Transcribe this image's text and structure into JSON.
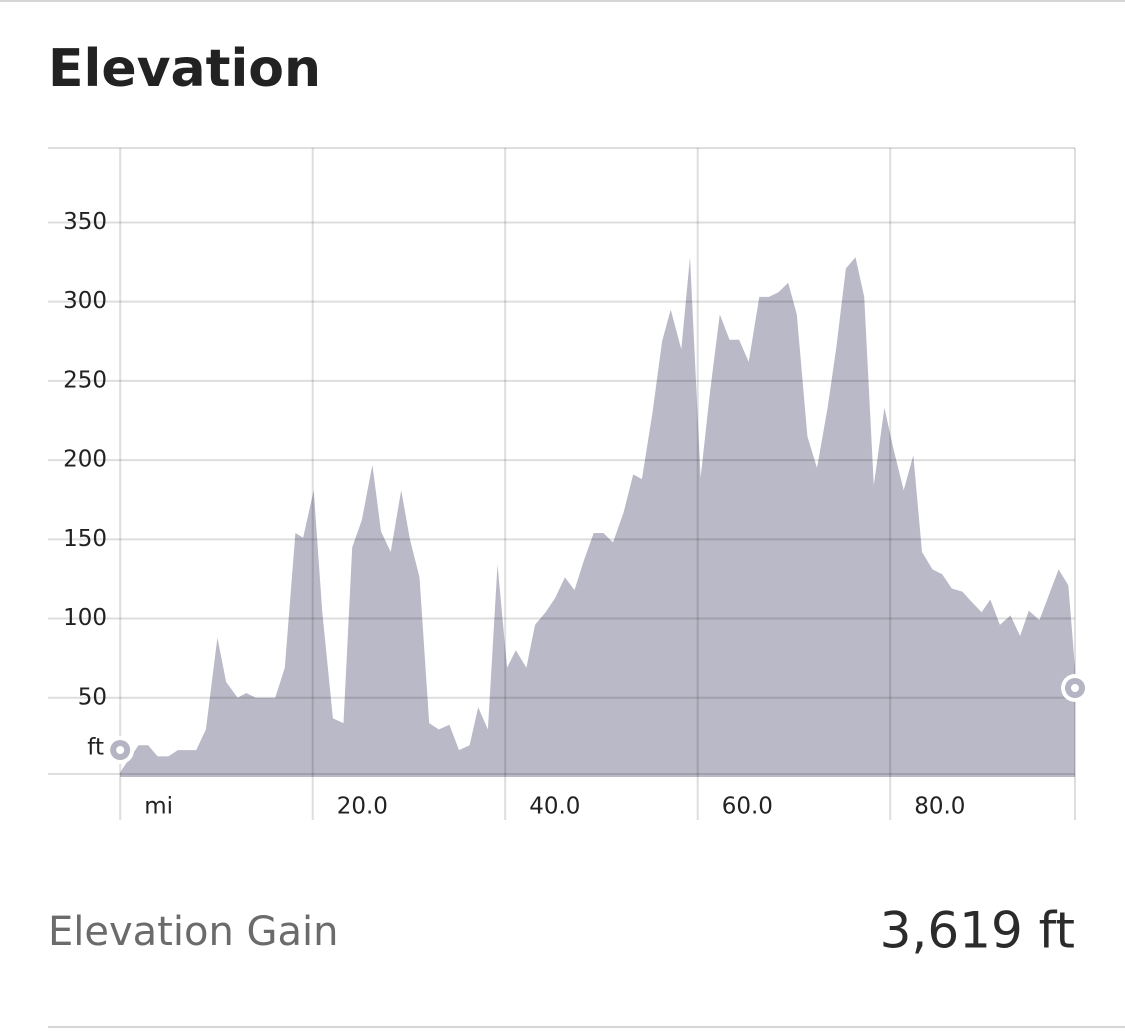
{
  "header": {
    "title": "Elevation"
  },
  "chart_data": {
    "type": "area",
    "color": "#b9b9c7",
    "grid": true,
    "y_unit": "ft",
    "x": [
      0,
      1.9,
      2.9,
      3.9,
      5.0,
      6.0,
      7.9,
      8.9,
      10.1,
      11.0,
      12.2,
      13.1,
      14.1,
      16.1,
      17.1,
      18.2,
      19.0,
      20.1,
      21.0,
      22.1,
      23.2,
      24.1,
      25.1,
      26.2,
      27.1,
      28.1,
      29.2,
      30.1,
      31.1,
      32.1,
      33.1,
      34.2,
      35.2,
      36.3,
      37.2,
      38.2,
      39.2,
      40.2,
      41.1,
      42.2,
      43.1,
      44.2,
      45.2,
      46.2,
      47.2,
      48.2,
      49.2,
      50.2,
      51.2,
      52.3,
      53.3,
      54.2,
      55.3,
      56.3,
      57.2,
      58.3,
      59.2,
      60.3,
      61.3,
      62.3,
      63.3,
      64.3,
      65.3,
      66.4,
      67.4,
      68.4,
      69.4,
      70.3,
      71.4,
      72.4,
      73.5,
      74.4,
      75.4,
      76.4,
      77.3,
      78.3,
      79.4,
      80.3,
      81.4,
      82.4,
      83.3,
      84.4,
      85.4,
      86.4,
      87.5,
      88.4,
      89.5,
      90.4,
      91.4,
      92.5,
      93.5,
      94.4,
      95.5,
      96.5,
      97.5,
      98.5,
      99.2
    ],
    "values": [
      3,
      20,
      20,
      13,
      13,
      17,
      17,
      30,
      88,
      60,
      50,
      53,
      50,
      50,
      69,
      154,
      151,
      181,
      104,
      37,
      34,
      145,
      162,
      197,
      155,
      142,
      181,
      150,
      126,
      34,
      30,
      33,
      17,
      20,
      44,
      30,
      134,
      69,
      80,
      69,
      96,
      104,
      113,
      126,
      118,
      137,
      154,
      154,
      148,
      167,
      191,
      188,
      230,
      275,
      295,
      270,
      328,
      189,
      244,
      292,
      276,
      276,
      262,
      303,
      303,
      306,
      312,
      292,
      215,
      195,
      233,
      271,
      321,
      328,
      303,
      184,
      233,
      208,
      181,
      203,
      142,
      131,
      128,
      119,
      117,
      111,
      104,
      112,
      96,
      102,
      89,
      105,
      99,
      115,
      131,
      121,
      69
    ],
    "xlim": [
      -7.5,
      99.2
    ],
    "ylim": [
      0,
      397
    ],
    "xticks": [
      {
        "value": 0,
        "label": "mi"
      },
      {
        "value": 20,
        "label": "20.0"
      },
      {
        "value": 40,
        "label": "40.0"
      },
      {
        "value": 60,
        "label": "60.0"
      },
      {
        "value": 80,
        "label": "80.0"
      }
    ],
    "yticks": [
      50,
      100,
      150,
      200,
      250,
      300,
      350
    ]
  },
  "stats": {
    "label": "Elevation Gain",
    "value": "3,619 ft"
  }
}
